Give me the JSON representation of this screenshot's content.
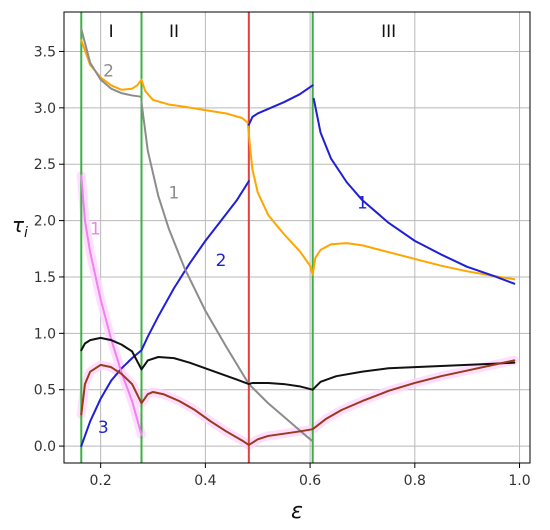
{
  "chart_data": {
    "type": "line",
    "xlabel": "ε",
    "ylabel": "τ",
    "ylabel_sub": "i",
    "xlim": [
      0.13,
      1.02
    ],
    "ylim": [
      -0.15,
      3.85
    ],
    "xticks": [
      0.2,
      0.4,
      0.6,
      0.8,
      1.0
    ],
    "xtick_labels": [
      "0.2",
      "0.4",
      "0.6",
      "0.8",
      "1.0"
    ],
    "yticks": [
      0.0,
      0.5,
      1.0,
      1.5,
      2.0,
      2.5,
      3.0,
      3.5
    ],
    "ytick_labels": [
      "0.0",
      "0.5",
      "1.0",
      "1.5",
      "2.0",
      "2.5",
      "3.0",
      "3.5"
    ],
    "grid": true,
    "colors": {
      "orange": "#ffa500",
      "blue": "#1f1fd6",
      "gray": "#8c8c8c",
      "black": "#111111",
      "brown": "#9b3a1a",
      "violet": "#ee82ee",
      "green": "#3cb043",
      "red": "#e34040",
      "glow": "#ffd6ff"
    },
    "vlines": [
      {
        "x": 0.163,
        "color": "green"
      },
      {
        "x": 0.278,
        "color": "green"
      },
      {
        "x": 0.483,
        "color": "red"
      },
      {
        "x": 0.605,
        "color": "green"
      }
    ],
    "regions": [
      {
        "label": "I",
        "x": 0.22,
        "y": 3.68
      },
      {
        "label": "II",
        "x": 0.34,
        "y": 3.68
      },
      {
        "label": "III",
        "x": 0.75,
        "y": 3.68
      }
    ],
    "annotations": [
      {
        "text": "2",
        "x": 0.215,
        "y": 3.33,
        "color": "gray"
      },
      {
        "text": "1",
        "x": 0.34,
        "y": 2.25,
        "color": "gray"
      },
      {
        "text": "1",
        "x": 0.19,
        "y": 1.93,
        "color": "violet"
      },
      {
        "text": "2",
        "x": 0.43,
        "y": 1.65,
        "color": "blue"
      },
      {
        "text": "1",
        "x": 0.7,
        "y": 2.16,
        "color": "blue"
      },
      {
        "text": "3",
        "x": 0.205,
        "y": 0.17,
        "color": "blue"
      }
    ],
    "series": [
      {
        "color": "orange",
        "segments": [
          [
            [
              0.163,
              3.6
            ],
            [
              0.18,
              3.38
            ],
            [
              0.2,
              3.27
            ],
            [
              0.22,
              3.2
            ],
            [
              0.24,
              3.16
            ],
            [
              0.26,
              3.17
            ],
            [
              0.27,
              3.2
            ],
            [
              0.278,
              3.25
            ],
            [
              0.285,
              3.15
            ],
            [
              0.3,
              3.07
            ],
            [
              0.33,
              3.03
            ],
            [
              0.36,
              3.01
            ],
            [
              0.4,
              2.98
            ],
            [
              0.44,
              2.95
            ],
            [
              0.47,
              2.91
            ],
            [
              0.481,
              2.87
            ],
            [
              0.485,
              2.67
            ],
            [
              0.49,
              2.45
            ],
            [
              0.5,
              2.25
            ],
            [
              0.52,
              2.05
            ],
            [
              0.55,
              1.88
            ],
            [
              0.58,
              1.73
            ],
            [
              0.6,
              1.6
            ],
            [
              0.605,
              1.52
            ],
            [
              0.61,
              1.67
            ],
            [
              0.62,
              1.74
            ],
            [
              0.64,
              1.79
            ],
            [
              0.67,
              1.8
            ],
            [
              0.7,
              1.78
            ],
            [
              0.75,
              1.72
            ],
            [
              0.8,
              1.66
            ],
            [
              0.85,
              1.6
            ],
            [
              0.9,
              1.55
            ],
            [
              0.95,
              1.51
            ],
            [
              0.99,
              1.48
            ]
          ]
        ]
      },
      {
        "color": "blue",
        "segments": [
          [
            [
              0.163,
              0.0
            ],
            [
              0.18,
              0.22
            ],
            [
              0.2,
              0.42
            ],
            [
              0.22,
              0.58
            ],
            [
              0.24,
              0.69
            ],
            [
              0.26,
              0.78
            ],
            [
              0.278,
              0.85
            ],
            [
              0.29,
              0.97
            ],
            [
              0.31,
              1.15
            ],
            [
              0.34,
              1.4
            ],
            [
              0.37,
              1.62
            ],
            [
              0.4,
              1.82
            ],
            [
              0.43,
              2.0
            ],
            [
              0.46,
              2.18
            ],
            [
              0.483,
              2.35
            ]
          ],
          [
            [
              0.483,
              2.85
            ],
            [
              0.49,
              2.92
            ],
            [
              0.5,
              2.95
            ],
            [
              0.52,
              2.99
            ],
            [
              0.55,
              3.05
            ],
            [
              0.58,
              3.12
            ],
            [
              0.605,
              3.2
            ]
          ],
          [
            [
              0.607,
              3.08
            ],
            [
              0.62,
              2.78
            ],
            [
              0.64,
              2.55
            ],
            [
              0.67,
              2.34
            ],
            [
              0.7,
              2.18
            ],
            [
              0.75,
              1.98
            ],
            [
              0.8,
              1.82
            ],
            [
              0.85,
              1.7
            ],
            [
              0.9,
              1.59
            ],
            [
              0.95,
              1.51
            ],
            [
              0.99,
              1.44
            ]
          ]
        ]
      },
      {
        "color": "gray",
        "segments": [
          [
            [
              0.163,
              3.7
            ],
            [
              0.18,
              3.4
            ],
            [
              0.2,
              3.25
            ],
            [
              0.22,
              3.17
            ],
            [
              0.24,
              3.13
            ],
            [
              0.26,
              3.11
            ],
            [
              0.275,
              3.1
            ]
          ],
          [
            [
              0.278,
              3.05
            ],
            [
              0.29,
              2.62
            ],
            [
              0.31,
              2.22
            ],
            [
              0.33,
              1.93
            ],
            [
              0.36,
              1.58
            ],
            [
              0.4,
              1.2
            ],
            [
              0.44,
              0.88
            ],
            [
              0.483,
              0.55
            ],
            [
              0.52,
              0.38
            ],
            [
              0.56,
              0.22
            ],
            [
              0.59,
              0.1
            ],
            [
              0.603,
              0.05
            ]
          ]
        ]
      },
      {
        "color": "violet",
        "segments": [
          [
            [
              0.163,
              2.4
            ],
            [
              0.17,
              2.0
            ],
            [
              0.18,
              1.72
            ],
            [
              0.2,
              1.3
            ],
            [
              0.22,
              0.95
            ],
            [
              0.24,
              0.65
            ],
            [
              0.26,
              0.4
            ],
            [
              0.278,
              0.1
            ]
          ]
        ]
      },
      {
        "color": "black",
        "segments": [
          [
            [
              0.163,
              0.85
            ],
            [
              0.17,
              0.91
            ],
            [
              0.18,
              0.94
            ],
            [
              0.2,
              0.96
            ],
            [
              0.22,
              0.94
            ],
            [
              0.24,
              0.9
            ],
            [
              0.26,
              0.84
            ],
            [
              0.278,
              0.68
            ],
            [
              0.29,
              0.76
            ],
            [
              0.31,
              0.79
            ],
            [
              0.34,
              0.78
            ],
            [
              0.37,
              0.74
            ],
            [
              0.4,
              0.69
            ],
            [
              0.43,
              0.64
            ],
            [
              0.46,
              0.59
            ],
            [
              0.483,
              0.55
            ],
            [
              0.49,
              0.56
            ],
            [
              0.52,
              0.56
            ],
            [
              0.55,
              0.55
            ],
            [
              0.58,
              0.53
            ],
            [
              0.605,
              0.5
            ],
            [
              0.62,
              0.57
            ],
            [
              0.65,
              0.62
            ],
            [
              0.7,
              0.66
            ],
            [
              0.75,
              0.69
            ],
            [
              0.8,
              0.7
            ],
            [
              0.85,
              0.71
            ],
            [
              0.9,
              0.72
            ],
            [
              0.95,
              0.73
            ],
            [
              0.99,
              0.74
            ]
          ]
        ]
      },
      {
        "color": "brown",
        "segments": [
          [
            [
              0.163,
              0.28
            ],
            [
              0.17,
              0.55
            ],
            [
              0.18,
              0.66
            ],
            [
              0.2,
              0.72
            ],
            [
              0.22,
              0.7
            ],
            [
              0.24,
              0.64
            ],
            [
              0.26,
              0.55
            ],
            [
              0.278,
              0.38
            ],
            [
              0.29,
              0.46
            ],
            [
              0.3,
              0.48
            ],
            [
              0.32,
              0.46
            ],
            [
              0.35,
              0.4
            ],
            [
              0.38,
              0.32
            ],
            [
              0.41,
              0.22
            ],
            [
              0.44,
              0.13
            ],
            [
              0.47,
              0.05
            ],
            [
              0.483,
              0.01
            ],
            [
              0.5,
              0.06
            ],
            [
              0.52,
              0.09
            ],
            [
              0.55,
              0.11
            ],
            [
              0.58,
              0.13
            ],
            [
              0.605,
              0.15
            ],
            [
              0.63,
              0.24
            ],
            [
              0.66,
              0.32
            ],
            [
              0.7,
              0.4
            ],
            [
              0.75,
              0.49
            ],
            [
              0.8,
              0.56
            ],
            [
              0.85,
              0.62
            ],
            [
              0.9,
              0.67
            ],
            [
              0.95,
              0.72
            ],
            [
              0.99,
              0.76
            ]
          ]
        ]
      }
    ]
  }
}
